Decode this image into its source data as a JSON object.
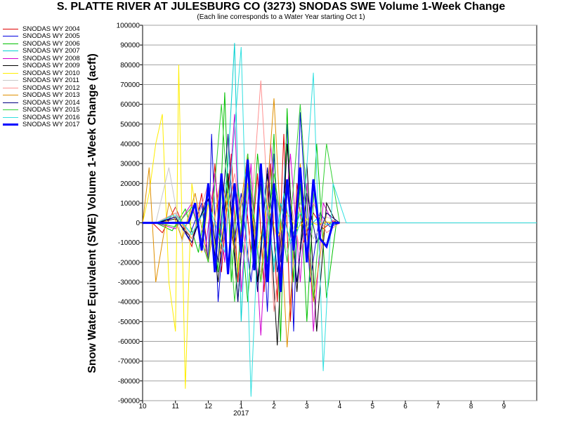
{
  "chart_data": {
    "type": "line",
    "title": "S. PLATTE RIVER AT JULESBURG CO (3273) SNODAS SWE Volume 1-Week Change",
    "subtitle": "(Each line corresponds to a Water Year starting Oct 1)",
    "ylabel": "Snow Water Equivalent (SWE) Volume 1-Week Change (acft)",
    "xlabel": "",
    "ylim": [
      -90000,
      100000
    ],
    "xlim": [
      0,
      12
    ],
    "y_ticks": [
      100000,
      90000,
      80000,
      70000,
      60000,
      50000,
      40000,
      30000,
      20000,
      10000,
      0,
      -10000,
      -20000,
      -30000,
      -40000,
      -50000,
      -60000,
      -70000,
      -80000,
      -90000
    ],
    "y_tick_labels": [
      "100000",
      "90000",
      "80000",
      "70000",
      "60000",
      "50000",
      "40000",
      "30000",
      "20000",
      "10000",
      "0",
      "-10000",
      "-20000",
      "-30000",
      "-40000",
      "-50000",
      "-60000",
      "-70000",
      "-80000",
      "-90000"
    ],
    "x_ticks": [
      0,
      1,
      2,
      3,
      4,
      5,
      6,
      7,
      8,
      9,
      10,
      11
    ],
    "x_tick_labels": [
      "10",
      "11",
      "12",
      "1",
      "2",
      "3",
      "4",
      "5",
      "6",
      "7",
      "8",
      "9"
    ],
    "x_year_label": "2017",
    "x_year_label_at": 3,
    "grid": true,
    "legend_position": "left",
    "series": [
      {
        "name": "SNODAS WY 2004",
        "color": "#e00000",
        "width": 1,
        "x": [
          0.3,
          0.6,
          1.0,
          1.5,
          1.8,
          2.0,
          2.2,
          2.4,
          2.7,
          2.9,
          3.1,
          3.3,
          3.5,
          3.7,
          3.9,
          4.1,
          4.3,
          4.5,
          4.7,
          4.9,
          5.2,
          5.5,
          5.8,
          6.0
        ],
        "values": [
          0,
          -5000,
          8000,
          -12000,
          15000,
          -20000,
          30000,
          -25000,
          35000,
          -30000,
          20000,
          -15000,
          25000,
          -35000,
          30000,
          -40000,
          45000,
          -50000,
          20000,
          -10000,
          5000,
          -3000,
          1000,
          0
        ]
      },
      {
        "name": "SNODAS WY 2005",
        "color": "#0000e0",
        "width": 1,
        "x": [
          0.5,
          1.0,
          1.4,
          1.8,
          2.0,
          2.1,
          2.3,
          2.6,
          2.8,
          3.0,
          3.3,
          3.6,
          3.8,
          4.0,
          4.2,
          4.4,
          4.6,
          4.8,
          5.1,
          5.4,
          5.7,
          6.0
        ],
        "values": [
          0,
          3000,
          -8000,
          10000,
          -20000,
          45000,
          -40000,
          25000,
          -10000,
          15000,
          -30000,
          20000,
          -45000,
          35000,
          -20000,
          50000,
          -55000,
          56000,
          -30000,
          5000,
          -2000,
          0
        ]
      },
      {
        "name": "SNODAS WY 2006",
        "color": "#00c000",
        "width": 1,
        "x": [
          0.4,
          0.9,
          1.3,
          1.7,
          2.0,
          2.3,
          2.5,
          2.7,
          2.9,
          3.2,
          3.5,
          3.8,
          4.0,
          4.2,
          4.4,
          4.6,
          4.8,
          5.0,
          5.3,
          5.6,
          5.9
        ],
        "values": [
          0,
          -4000,
          7000,
          -15000,
          18000,
          -25000,
          66000,
          -30000,
          20000,
          -40000,
          35000,
          -20000,
          45000,
          -60000,
          58000,
          -30000,
          20000,
          -50000,
          40000,
          -38000,
          0
        ]
      },
      {
        "name": "SNODAS WY 2007",
        "color": "#00d0d0",
        "width": 1,
        "x": [
          0.5,
          1.0,
          1.5,
          2.0,
          2.3,
          2.6,
          2.8,
          3.0,
          3.2,
          3.5,
          3.8,
          4.0,
          4.2,
          4.5,
          4.8,
          5.0,
          5.3,
          5.6,
          6.0
        ],
        "values": [
          0,
          5000,
          -6000,
          12000,
          -20000,
          30000,
          91000,
          -50000,
          20000,
          -30000,
          15000,
          -25000,
          10000,
          -10000,
          5000,
          -3000,
          2000,
          -1000,
          0
        ]
      },
      {
        "name": "SNODAS WY 2008",
        "color": "#d000d0",
        "width": 1,
        "x": [
          0.4,
          1.0,
          1.5,
          1.9,
          2.2,
          2.5,
          2.8,
          3.0,
          3.3,
          3.6,
          3.9,
          4.2,
          4.5,
          4.8,
          5.0,
          5.2,
          5.5,
          5.8
        ],
        "values": [
          0,
          -3000,
          10000,
          -15000,
          25000,
          -20000,
          55000,
          -35000,
          30000,
          -57000,
          40000,
          -25000,
          35000,
          -30000,
          20000,
          -55000,
          10000,
          0
        ]
      },
      {
        "name": "SNODAS WY 2009",
        "color": "#000000",
        "width": 1,
        "x": [
          0.4,
          1.0,
          1.5,
          2.0,
          2.3,
          2.6,
          2.9,
          3.2,
          3.5,
          3.8,
          4.1,
          4.4,
          4.7,
          5.0,
          5.3,
          5.6,
          5.9
        ],
        "values": [
          0,
          2000,
          -8000,
          12000,
          -30000,
          25000,
          -40000,
          35000,
          -30000,
          25000,
          -62000,
          40000,
          -35000,
          30000,
          -55000,
          10000,
          0
        ]
      },
      {
        "name": "SNODAS WY 2010",
        "color": "#ffee00",
        "width": 1,
        "x": [
          0.0,
          0.2,
          0.4,
          0.6,
          0.8,
          1.0,
          1.1,
          1.3,
          1.5,
          1.8,
          2.0,
          2.3,
          2.6,
          2.9,
          3.2,
          3.5,
          3.8,
          4.1,
          4.4,
          4.7,
          5.0,
          5.3,
          5.6,
          6.0
        ],
        "values": [
          0,
          15000,
          40000,
          55000,
          -30000,
          -55000,
          80000,
          -84000,
          20000,
          -15000,
          10000,
          -20000,
          15000,
          -25000,
          20000,
          -15000,
          10000,
          -8000,
          5000,
          -3000,
          2000,
          -1000,
          500,
          0
        ]
      },
      {
        "name": "SNODAS WY 2011",
        "color": "#c8c8c8",
        "width": 1,
        "x": [
          0.4,
          0.8,
          1.2,
          1.6,
          2.0,
          2.4,
          2.8,
          3.2,
          3.6,
          4.0,
          4.4,
          4.8,
          5.2,
          5.6,
          6.0
        ],
        "values": [
          0,
          28000,
          -10000,
          15000,
          -20000,
          25000,
          -15000,
          30000,
          -25000,
          20000,
          -15000,
          10000,
          -8000,
          3000,
          0
        ]
      },
      {
        "name": "SNODAS WY 2012",
        "color": "#ff9090",
        "width": 1,
        "x": [
          0.4,
          1.0,
          1.5,
          2.0,
          2.4,
          2.8,
          3.2,
          3.6,
          4.0,
          4.4,
          4.8,
          5.2,
          5.6,
          6.0
        ],
        "values": [
          0,
          5000,
          -8000,
          20000,
          -15000,
          25000,
          -20000,
          72000,
          -45000,
          20000,
          -15000,
          10000,
          -5000,
          0
        ]
      },
      {
        "name": "SNODAS WY 2013",
        "color": "#e09000",
        "width": 1,
        "x": [
          0.0,
          0.2,
          0.4,
          0.8,
          1.2,
          1.6,
          2.0,
          2.4,
          2.8,
          3.2,
          3.6,
          4.0,
          4.4,
          4.8,
          5.2,
          5.6,
          6.0
        ],
        "values": [
          0,
          28000,
          -30000,
          10000,
          -8000,
          15000,
          -20000,
          25000,
          -15000,
          35000,
          -30000,
          63000,
          -63000,
          30000,
          -40000,
          5000,
          0
        ]
      },
      {
        "name": "SNODAS WY 2014",
        "color": "#000080",
        "width": 1,
        "x": [
          0.4,
          1.0,
          1.5,
          2.0,
          2.3,
          2.6,
          2.9,
          3.2,
          3.5,
          3.8,
          4.1,
          4.4,
          4.7,
          5.0,
          5.3,
          5.6,
          6.0
        ],
        "values": [
          0,
          3000,
          -10000,
          15000,
          -20000,
          45000,
          -40000,
          30000,
          -35000,
          28000,
          -25000,
          20000,
          -30000,
          15000,
          -10000,
          5000,
          0
        ]
      },
      {
        "name": "SNODAS WY 2015",
        "color": "#30d030",
        "width": 1,
        "x": [
          0.4,
          1.0,
          1.5,
          2.0,
          2.4,
          2.8,
          3.2,
          3.6,
          4.0,
          4.4,
          4.8,
          5.2,
          5.6,
          6.0
        ],
        "values": [
          0,
          -2000,
          8000,
          -20000,
          60000,
          -40000,
          35000,
          -30000,
          25000,
          -20000,
          60000,
          -38000,
          40000,
          0
        ]
      },
      {
        "name": "SNODAS WY 2016",
        "color": "#30e0e0",
        "width": 1,
        "x": [
          0.4,
          1.0,
          1.5,
          2.0,
          2.5,
          3.0,
          3.3,
          3.6,
          4.0,
          4.3,
          4.6,
          4.9,
          5.2,
          5.5,
          5.8,
          6.2,
          7.0,
          8.0,
          9.0,
          10.0,
          11.0,
          12.0
        ],
        "values": [
          0,
          4000,
          -6000,
          10000,
          -15000,
          89000,
          -88000,
          30000,
          -20000,
          15000,
          -10000,
          5000,
          76000,
          -75000,
          20000,
          0,
          0,
          0,
          0,
          0,
          0,
          0
        ]
      },
      {
        "name": "SNODAS WY 2017",
        "color": "#0000ff",
        "width": 3,
        "x": [
          0.0,
          0.5,
          1.0,
          1.4,
          1.6,
          1.8,
          2.0,
          2.2,
          2.4,
          2.6,
          2.8,
          3.0,
          3.2,
          3.4,
          3.6,
          3.8,
          4.0,
          4.2,
          4.4,
          4.6,
          4.8,
          5.0,
          5.2,
          5.4,
          5.6,
          5.8,
          6.0
        ],
        "values": [
          0,
          0,
          0,
          0,
          10000,
          -14000,
          20000,
          -25000,
          25000,
          -26000,
          20000,
          -15000,
          32000,
          -24000,
          30000,
          -30000,
          20000,
          -35000,
          22000,
          -14000,
          28000,
          -20000,
          22000,
          -8000,
          -12000,
          0,
          0
        ]
      }
    ]
  }
}
